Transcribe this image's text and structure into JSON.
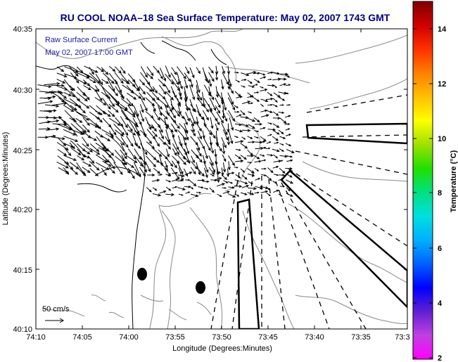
{
  "title": "RU COOL  NOAA–18  Sea Surface Temperature:  May 02, 2007 1743 GMT",
  "legend": {
    "line1": "Raw Surface Current",
    "line2": "May 02, 2007 17:00 GMT"
  },
  "scale_label": "50 cm/s",
  "axes": {
    "xlabel": "Longitude (Degrees:Minutes)",
    "ylabel": "Latitude (Degrees:Minutes)",
    "xticks": [
      "74:10",
      "74:05",
      "74:00",
      "73:55",
      "73:50",
      "73:45",
      "73:40",
      "73:35",
      "73:3"
    ],
    "yticks": [
      "40:35",
      "40:30",
      "40:25",
      "40:20",
      "40:15",
      "40:10"
    ]
  },
  "colorbar": {
    "label": "Temperature (°C)",
    "ticks": [
      "14",
      "12",
      "10",
      "8",
      "6",
      "4",
      "2"
    ],
    "range": [
      2,
      15
    ],
    "colors": [
      "#ff00ff",
      "#c040e0",
      "#6020d0",
      "#0000ff",
      "#0060ff",
      "#00b0ff",
      "#00e0e0",
      "#00e080",
      "#20e000",
      "#a0e000",
      "#ffff00",
      "#ffc000",
      "#ff8000",
      "#ff3000",
      "#d00000",
      "#800000"
    ]
  },
  "colors": {
    "title": "#00007f",
    "legend": "#1a1aa8",
    "contour": "#808080",
    "coast": "#000000"
  }
}
